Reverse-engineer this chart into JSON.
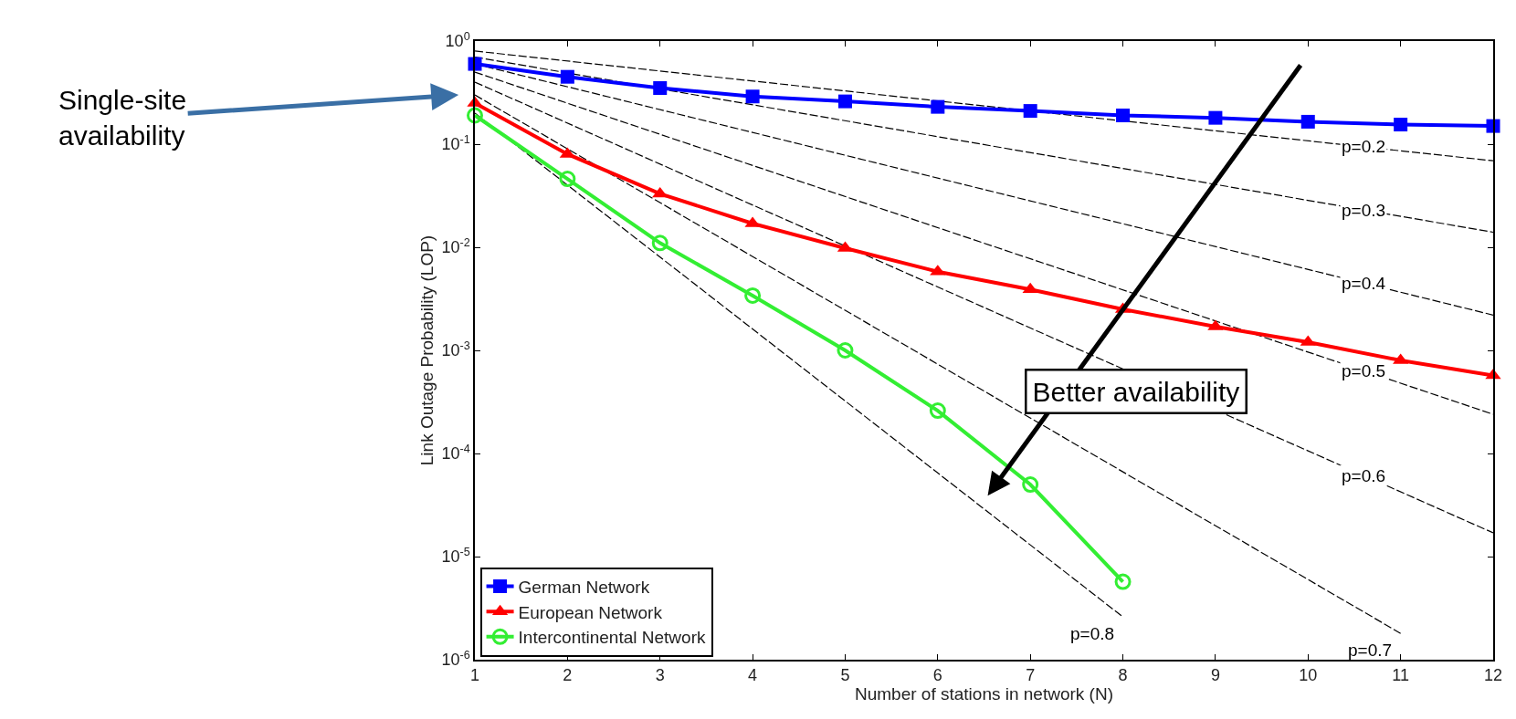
{
  "chart_data": {
    "type": "line",
    "xlabel": "Number of stations in network (N)",
    "ylabel": "Link Outage Probability (LOP)",
    "log": "y",
    "xlim": [
      1,
      12
    ],
    "xticks": [
      1,
      2,
      3,
      4,
      5,
      6,
      7,
      8,
      9,
      10,
      11,
      12
    ],
    "ylim": [
      1e-06,
      1
    ],
    "yticks": [
      {
        "value": 1,
        "label": "10$^{0}$"
      },
      {
        "value": 0.1,
        "label": "10$^{-1}$"
      },
      {
        "value": 0.01,
        "label": "10$^{-2}$"
      },
      {
        "value": 0.001,
        "label": "10$^{-3}$"
      },
      {
        "value": 0.0001,
        "label": "10$^{-4}$"
      },
      {
        "value": 1e-05,
        "label": "10$^{-5}$"
      },
      {
        "value": 1e-06,
        "label": "10$^{-6}$"
      }
    ],
    "legend": "bottom left",
    "series": [
      {
        "name": "p=0.2",
        "line_style": "dashed",
        "marker": "none",
        "color": "#000000",
        "x": [
          1,
          12
        ],
        "values": [
          0.8,
          0.069
        ]
      },
      {
        "name": "p=0.3",
        "line_style": "dashed",
        "marker": "none",
        "color": "#000000",
        "x": [
          1,
          12
        ],
        "values": [
          0.7,
          0.014
        ]
      },
      {
        "name": "p=0.4",
        "line_style": "dashed",
        "marker": "none",
        "color": "#000000",
        "x": [
          1,
          12
        ],
        "values": [
          0.6,
          0.0022
        ]
      },
      {
        "name": "p=0.5",
        "line_style": "dashed",
        "marker": "none",
        "color": "#000000",
        "x": [
          1,
          12
        ],
        "values": [
          0.5,
          0.00024
        ]
      },
      {
        "name": "p=0.6",
        "line_style": "dashed",
        "marker": "none",
        "color": "#000000",
        "x": [
          1,
          12
        ],
        "values": [
          0.4,
          1.7e-05
        ]
      },
      {
        "name": "p=0.7",
        "line_style": "dashed",
        "marker": "none",
        "color": "#000000",
        "x": [
          1,
          11
        ],
        "values": [
          0.3,
          1.8e-06
        ]
      },
      {
        "name": "p=0.8",
        "line_style": "dashed",
        "marker": "none",
        "color": "#000000",
        "x": [
          1,
          8
        ],
        "values": [
          0.2,
          2.6e-06
        ]
      },
      {
        "name": "German Network",
        "line_style": "solid",
        "marker": "square",
        "color": "#0000ff",
        "x": [
          1,
          2,
          3,
          4,
          5,
          6,
          7,
          8,
          9,
          10,
          11,
          12
        ],
        "values": [
          0.6,
          0.45,
          0.35,
          0.29,
          0.26,
          0.23,
          0.21,
          0.19,
          0.18,
          0.165,
          0.155,
          0.15
        ]
      },
      {
        "name": "European Network",
        "line_style": "solid",
        "marker": "triangle",
        "color": "#ff0000",
        "x": [
          1,
          2,
          3,
          4,
          5,
          6,
          7,
          8,
          9,
          10,
          11,
          12
        ],
        "values": [
          0.25,
          0.08,
          0.033,
          0.017,
          0.0098,
          0.0058,
          0.0039,
          0.0025,
          0.0017,
          0.0012,
          0.0008,
          0.00057
        ]
      },
      {
        "name": "Intercontinental Network",
        "line_style": "solid",
        "marker": "circle",
        "color": "#33ee33",
        "x": [
          1,
          2,
          3,
          4,
          5,
          6,
          7,
          8
        ],
        "values": [
          0.19,
          0.046,
          0.011,
          0.0034,
          0.001,
          0.00026,
          5e-05,
          5.7e-06
        ]
      }
    ],
    "annotations": [
      "Single-site availability",
      "Better availability"
    ]
  }
}
